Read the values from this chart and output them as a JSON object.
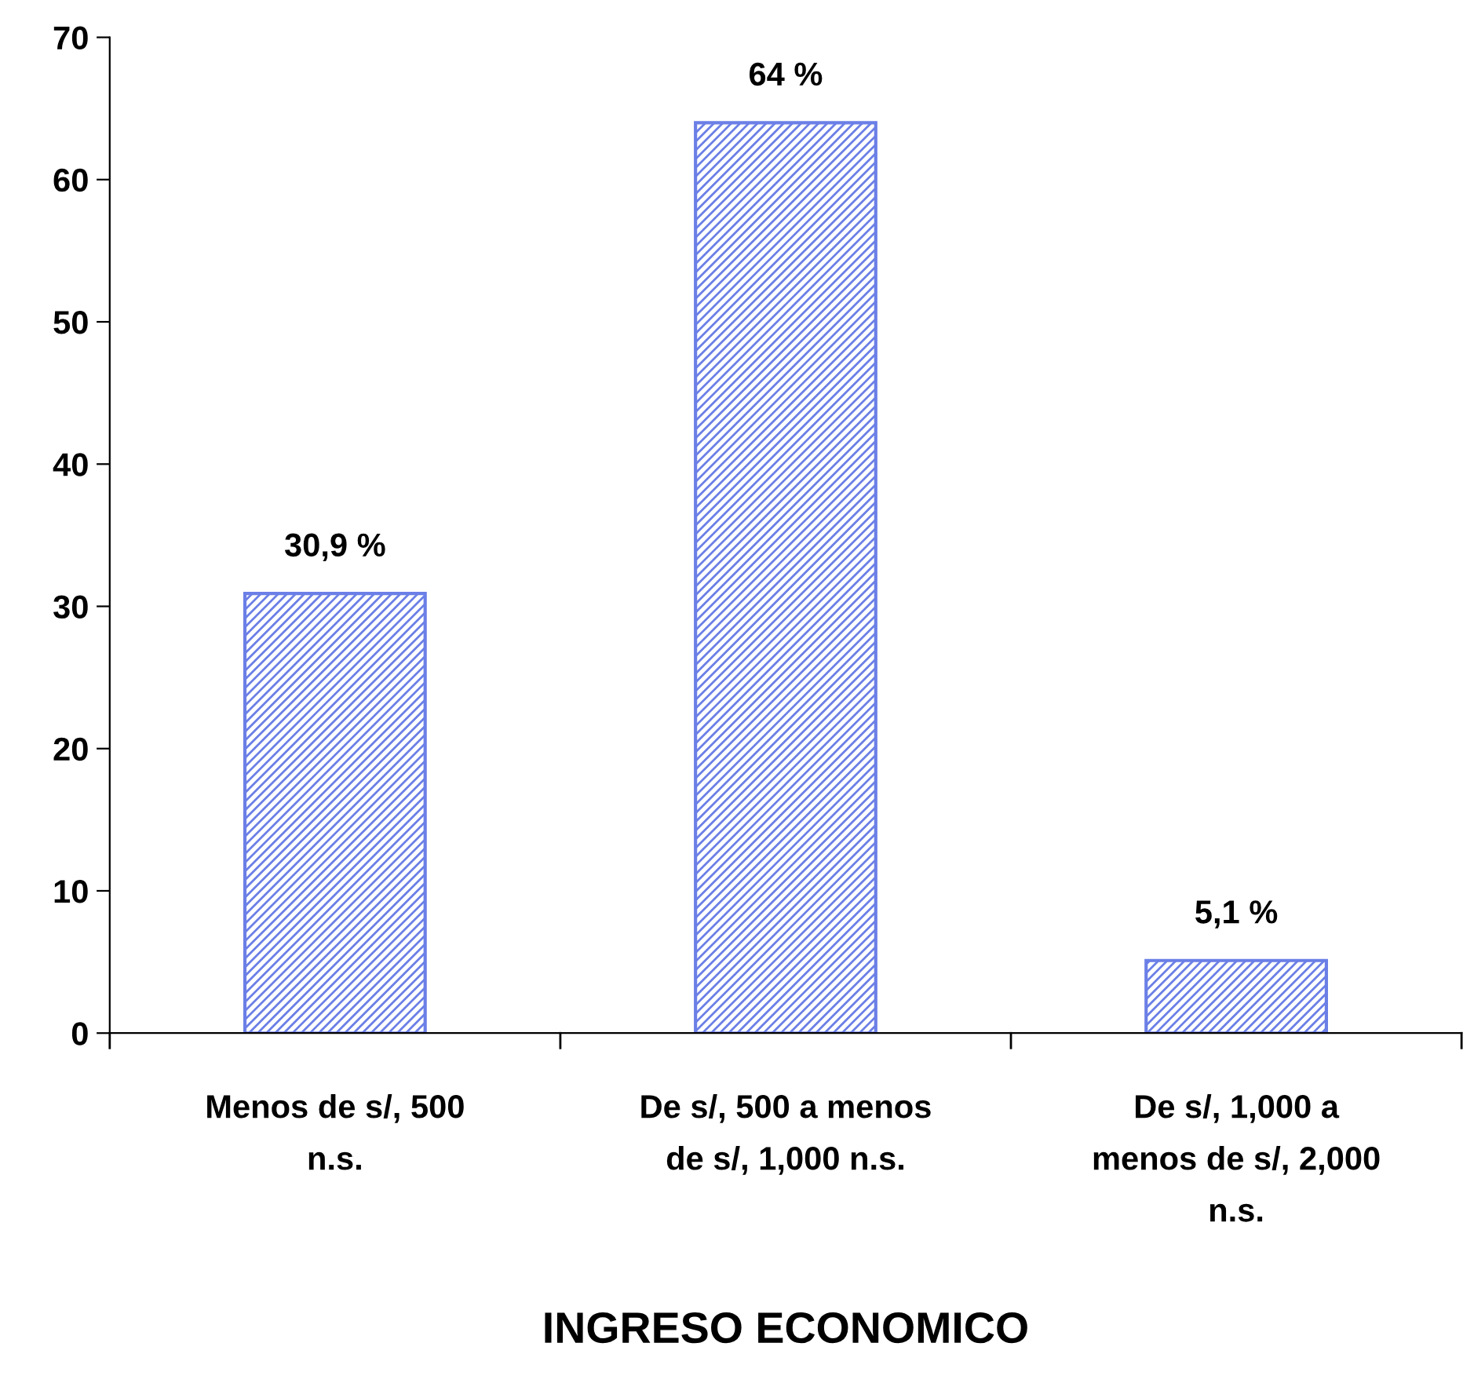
{
  "chart_data": {
    "type": "bar",
    "xlabel": "INGRESO ECONOMICO",
    "categories": [
      "Menos de s/, 500\nn.s.",
      "De s/, 500 a menos\nde s/, 1,000 n.s.",
      "De s/, 1,000 a\nmenos de s/, 2,000\nn.s."
    ],
    "values": [
      30.9,
      64,
      5.1
    ],
    "value_labels": [
      "30,9 %",
      "64 %",
      "5,1 %"
    ],
    "color": "#6b7fe6",
    "ylim": [
      0,
      70
    ],
    "yticks": [
      0,
      10,
      20,
      30,
      40,
      50,
      60,
      70
    ],
    "grid": false,
    "legend": false
  }
}
